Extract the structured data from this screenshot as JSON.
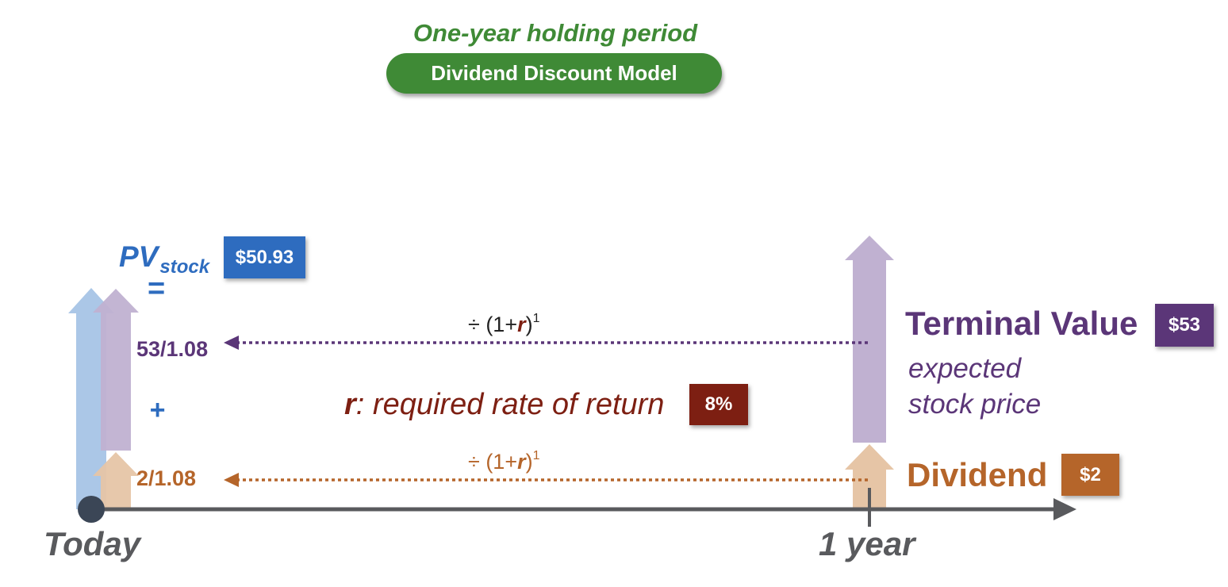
{
  "header": {
    "subtitle": "One-year holding period",
    "title": "Dividend Discount Model"
  },
  "present_value": {
    "label": "PV",
    "subscript": "stock",
    "value": "$50.93",
    "equals": "=",
    "plus": "+",
    "terminal_fraction": "53/1.08",
    "dividend_fraction": "2/1.08"
  },
  "discount": {
    "prefix": "÷ (1+",
    "rate_symbol": "r",
    "suffix": ")",
    "exponent": "1"
  },
  "rate": {
    "symbol": "r",
    "description": ": required rate of return",
    "value": "8%"
  },
  "terminal_value": {
    "title": "Terminal Value",
    "value": "$53",
    "desc_line1": "expected",
    "desc_line2": "stock price"
  },
  "dividend": {
    "title": "Dividend",
    "value": "$2"
  },
  "timeline": {
    "start_label": "Today",
    "end_label": "1 year"
  },
  "colors": {
    "green": "#3f8a36",
    "blue": "#2e6cbf",
    "purple": "#5b3678",
    "orange": "#b5652a",
    "dark_red": "#7d1f12",
    "axis_gray": "#595a5d"
  }
}
